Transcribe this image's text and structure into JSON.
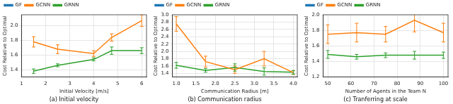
{
  "chart_data": [
    {
      "type": "line",
      "title": "(a) Initial velocity",
      "x_label": "Initial Velocity [m/s]",
      "y_label": "Cost Relative to Optimal",
      "x": [
        1.5,
        2.5,
        4.0,
        4.75,
        6.0
      ],
      "series": [
        {
          "name": "GF",
          "color": "#1f77b4",
          "values": [
            null,
            null,
            null,
            null,
            null
          ],
          "errors": [
            null,
            null,
            null,
            null,
            null
          ]
        },
        {
          "name": "GCNN",
          "color": "#ff7f0e",
          "values": [
            1.78,
            1.68,
            1.62,
            1.84,
            2.07
          ],
          "errors": [
            0.07,
            0.06,
            0.04,
            0.05,
            0.08
          ]
        },
        {
          "name": "GRNN",
          "color": "#2ca02c",
          "values": [
            1.38,
            1.46,
            1.54,
            1.66,
            1.66
          ],
          "errors": [
            0.03,
            0.02,
            0.02,
            0.05,
            0.04
          ]
        }
      ],
      "xlim": [
        1,
        6.2
      ],
      "xticks": [
        1,
        2,
        3,
        4,
        5,
        6
      ],
      "ylim": [
        1.3,
        2.15
      ],
      "yticks": [
        1.4,
        1.6,
        1.8,
        {
          "value": 2,
          "label": "2.0"
        }
      ],
      "grid": true,
      "legend": "top"
    },
    {
      "type": "line",
      "title": "(b) Communication radius",
      "x_label": "Communication Radius [m]",
      "y_label": "Cost Relative to Optimal",
      "x": [
        1.0,
        1.75,
        2.5,
        3.25,
        4.0
      ],
      "series": [
        {
          "name": "GF",
          "color": "#1f77b4",
          "values": [
            null,
            null,
            null,
            null,
            null
          ],
          "errors": [
            null,
            null,
            null,
            null,
            null
          ]
        },
        {
          "name": "GCNN",
          "color": "#ff7f0e",
          "values": [
            2.75,
            1.72,
            1.5,
            1.8,
            1.42
          ],
          "errors": [
            0.2,
            0.15,
            0.1,
            0.2,
            0.05
          ]
        },
        {
          "name": "GRNN",
          "color": "#2ca02c",
          "values": [
            1.62,
            1.48,
            1.56,
            1.45,
            1.43
          ],
          "errors": [
            0.08,
            0.05,
            0.1,
            0.1,
            0.05
          ]
        }
      ],
      "xlim": [
        0.9,
        4.1
      ],
      "xticks": [
        {
          "value": 1,
          "label": "1.0"
        },
        1.5,
        {
          "value": 2,
          "label": "2.0"
        },
        2.5,
        {
          "value": 3,
          "label": "3.0"
        },
        3.5,
        {
          "value": 4,
          "label": "4.0"
        }
      ],
      "ylim": [
        1.3,
        3.0
      ],
      "yticks": [
        1.4,
        1.6,
        1.8,
        {
          "value": 2,
          "label": "2.0"
        },
        2.2,
        2.4,
        2.6,
        2.8,
        {
          "value": 3,
          "label": "3.0"
        }
      ],
      "grid": true,
      "legend": "top"
    },
    {
      "type": "line",
      "title": "(c) Tranferring at scale",
      "x_label": "Number of Agents in the Team N",
      "y_label": "Cost Relative to Optimal",
      "x": [
        50,
        62.5,
        75,
        87.5,
        100
      ],
      "series": [
        {
          "name": "GF",
          "color": "#1f77b4",
          "values": [
            null,
            null,
            null,
            null,
            null
          ],
          "errors": [
            null,
            null,
            null,
            null,
            null
          ]
        },
        {
          "name": "GCNN",
          "color": "#ff7f0e",
          "values": [
            1.75,
            1.77,
            1.75,
            1.93,
            1.77
          ],
          "errors": [
            0.12,
            0.12,
            0.1,
            0.15,
            0.12
          ]
        },
        {
          "name": "GRNN",
          "color": "#2ca02c",
          "values": [
            1.49,
            1.46,
            1.48,
            1.48,
            1.48
          ],
          "errors": [
            0.05,
            0.03,
            0.03,
            0.05,
            0.04
          ]
        }
      ],
      "xlim": [
        48,
        102
      ],
      "xticks": [
        50,
        60,
        70,
        80,
        90,
        100
      ],
      "ylim": [
        1.2,
        2.0
      ],
      "yticks": [
        1.2,
        1.4,
        1.6,
        1.8,
        {
          "value": 2,
          "label": "2.0"
        }
      ],
      "grid": true,
      "legend": "top"
    }
  ]
}
